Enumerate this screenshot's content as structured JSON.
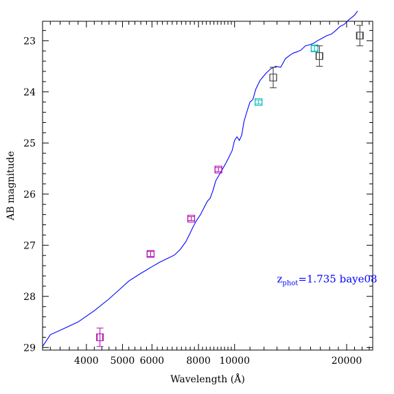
{
  "chart_data": {
    "type": "scatter",
    "xlabel": "Wavelength (Å)",
    "ylabel": "AB magnitude",
    "x_scale": "log",
    "xlim": [
      3050,
      23500
    ],
    "ylim": [
      29.05,
      22.62
    ],
    "x_ticks": [
      4000,
      5000,
      6000,
      8000,
      10000,
      20000
    ],
    "x_tick_labels": [
      "4000",
      "5000",
      "6000",
      "8000",
      "10000",
      "20000"
    ],
    "y_ticks": [
      23,
      24,
      25,
      26,
      27,
      28,
      29
    ],
    "y_tick_labels": [
      "23",
      "24",
      "25",
      "26",
      "27",
      "28",
      "29"
    ],
    "grid": false,
    "annotation": {
      "prefix": "z",
      "subscript": "phot",
      "text": "=1.735 baye08",
      "color": "#0000ff",
      "x": 13000,
      "y": 27.73
    },
    "template": {
      "color": "#0000ff",
      "x": [
        3050,
        3200,
        3500,
        3800,
        4200,
        4600,
        4900,
        5200,
        5600,
        6000,
        6300,
        6600,
        6900,
        7150,
        7400,
        7600,
        7750,
        7900,
        8100,
        8300,
        8450,
        8600,
        8750,
        8900,
        9100,
        9300,
        9500,
        9700,
        9850,
        10000,
        10150,
        10300,
        10450,
        10600,
        10800,
        11000,
        11200,
        11400,
        11700,
        12100,
        12500,
        12900,
        13300,
        13700,
        14100,
        14400,
        14700,
        15100,
        15500,
        15900,
        16300,
        16700,
        17200,
        17700,
        18200,
        18700,
        19200,
        19700,
        20200,
        20600,
        21000,
        21400
      ],
      "y": [
        28.98,
        28.75,
        28.62,
        28.5,
        28.28,
        28.05,
        27.87,
        27.7,
        27.55,
        27.42,
        27.33,
        27.26,
        27.19,
        27.08,
        26.93,
        26.76,
        26.63,
        26.52,
        26.4,
        26.25,
        26.14,
        26.08,
        25.93,
        25.74,
        25.62,
        25.5,
        25.38,
        25.25,
        25.15,
        24.95,
        24.88,
        24.95,
        24.85,
        24.58,
        24.38,
        24.2,
        24.15,
        23.95,
        23.78,
        23.65,
        23.55,
        23.5,
        23.52,
        23.35,
        23.28,
        23.24,
        23.22,
        23.18,
        23.1,
        23.08,
        23.05,
        23.0,
        22.95,
        22.9,
        22.87,
        22.8,
        22.72,
        22.68,
        22.6,
        22.55,
        22.5,
        22.42
      ]
    },
    "series": [
      {
        "color": "#b000b0",
        "points": [
          {
            "x": 4350,
            "y": 28.8,
            "err": 0.18,
            "xhalf": 70
          },
          {
            "x": 5950,
            "y": 27.17,
            "err": 0.05,
            "xhalf": 130
          },
          {
            "x": 7650,
            "y": 26.48,
            "err": 0.04,
            "xhalf": 160
          },
          {
            "x": 9050,
            "y": 25.52,
            "err": 0.04,
            "xhalf": 190
          }
        ]
      },
      {
        "color": "#00b8c0",
        "points": [
          {
            "x": 11600,
            "y": 24.2,
            "err": 0.04,
            "xhalf": 250
          },
          {
            "x": 16400,
            "y": 23.15,
            "err": 0.05,
            "xhalf": 330
          }
        ]
      },
      {
        "color": "#333333",
        "points": [
          {
            "x": 12700,
            "y": 23.72,
            "err": 0.2,
            "xhalf": 260
          },
          {
            "x": 16900,
            "y": 23.3,
            "err": 0.2,
            "xhalf": 320
          },
          {
            "x": 21700,
            "y": 22.9,
            "err": 0.2,
            "xhalf": 380
          }
        ]
      }
    ]
  }
}
